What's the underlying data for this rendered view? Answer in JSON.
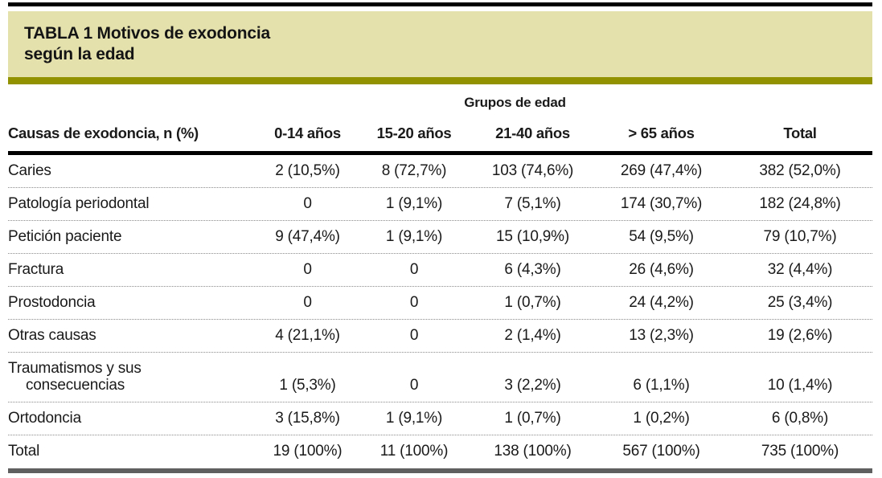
{
  "table": {
    "title": "TABLA 1 Motivos de exodoncia\nsegún la edad",
    "group_header": "Grupos de edad",
    "columns": [
      "Causas de exodoncia, n (%)",
      "0-14 años",
      "15-20 años",
      "21-40 años",
      "> 65 años",
      "Total"
    ],
    "rows": [
      {
        "label": "Caries",
        "values": [
          "2 (10,5%)",
          "8 (72,7%)",
          "103 (74,6%)",
          "269 (47,4%)",
          "382 (52,0%)"
        ]
      },
      {
        "label": "Patología periodontal",
        "values": [
          "0",
          "1 (9,1%)",
          "7 (5,1%)",
          "174 (30,7%)",
          "182 (24,8%)"
        ]
      },
      {
        "label": "Petición paciente",
        "values": [
          "9 (47,4%)",
          "1 (9,1%)",
          "15 (10,9%)",
          "54 (9,5%)",
          "79 (10,7%)"
        ]
      },
      {
        "label": "Fractura",
        "values": [
          "0",
          "0",
          "6 (4,3%)",
          "26 (4,6%)",
          "32 (4,4%)"
        ]
      },
      {
        "label": "Prostodoncia",
        "values": [
          "0",
          "0",
          "1 (0,7%)",
          "24 (4,2%)",
          "25 (3,4%)"
        ]
      },
      {
        "label": "Otras causas",
        "values": [
          "4 (21,1%)",
          "0",
          "2 (1,4%)",
          "13 (2,3%)",
          "19 (2,6%)"
        ]
      },
      {
        "label": "Traumatismos y sus\nconsecuencias",
        "values": [
          "1 (5,3%)",
          "0",
          "3 (2,2%)",
          "6 (1,1%)",
          "10 (1,4%)"
        ]
      },
      {
        "label": "Ortodoncia",
        "values": [
          "3 (15,8%)",
          "1 (9,1%)",
          "1 (0,7%)",
          "1 (0,2%)",
          "6 (0,8%)"
        ]
      },
      {
        "label": "Total",
        "values": [
          "19 (100%)",
          "11 (100%)",
          "138 (100%)",
          "567 (100%)",
          "735 (100%)"
        ]
      }
    ]
  },
  "colors": {
    "band": "#e4e1ad",
    "olive": "#929200",
    "top_rule": "#000000",
    "header_rule": "#000000",
    "bottom_rule": "#5f5f5f",
    "dotted": "#8a8a8a",
    "text": "#1a1a1a"
  }
}
